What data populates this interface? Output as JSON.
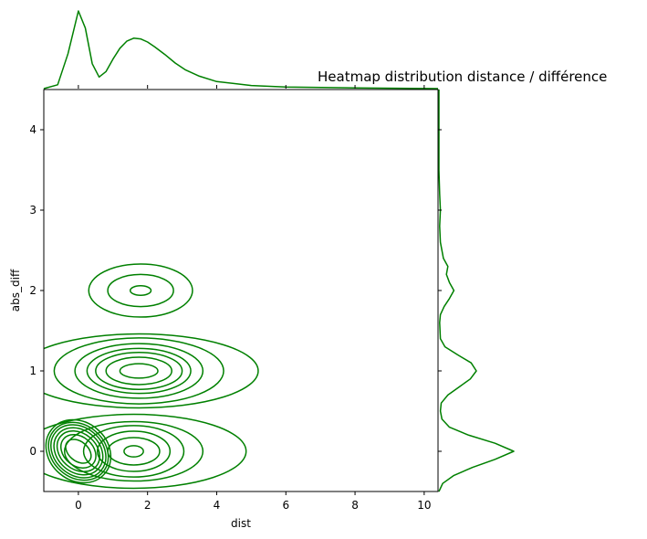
{
  "chart_data": {
    "type": "kde-jointplot",
    "title": "Heatmap distribution distance / différence",
    "xlabel": "dist",
    "ylabel": "abs_diff",
    "xlim": [
      -1.0,
      10.4
    ],
    "ylim": [
      -0.5,
      4.5
    ],
    "xticks": [
      0,
      2,
      4,
      6,
      8,
      10
    ],
    "yticks": [
      0,
      1,
      2,
      3,
      4
    ],
    "color": "#008000",
    "grid": false,
    "clusters": [
      {
        "center": {
          "x": 0.0,
          "y": 0.0
        },
        "contours": [
          {
            "rx": 0.28,
            "ry": 0.18,
            "rot": 50
          },
          {
            "rx": 0.42,
            "ry": 0.24,
            "rot": 50
          },
          {
            "rx": 0.52,
            "ry": 0.29,
            "rot": 50
          },
          {
            "rx": 0.61,
            "ry": 0.33,
            "rot": 50
          },
          {
            "rx": 0.69,
            "ry": 0.37,
            "rot": 50
          },
          {
            "rx": 0.76,
            "ry": 0.4,
            "rot": 50
          },
          {
            "rx": 0.84,
            "ry": 0.43,
            "rot": 50
          }
        ]
      },
      {
        "center": {
          "x": 1.6,
          "y": 0.0
        },
        "contours": [
          {
            "rx": 0.28,
            "ry": 0.07,
            "rot": 0
          },
          {
            "rx": 0.75,
            "ry": 0.17,
            "rot": 0
          },
          {
            "rx": 1.05,
            "ry": 0.25,
            "rot": 0
          },
          {
            "rx": 1.45,
            "ry": 0.32,
            "rot": 0
          },
          {
            "rx": 2.0,
            "ry": 0.37,
            "rot": 0
          },
          {
            "rx": 3.25,
            "ry": 0.46,
            "rot": 0
          }
        ]
      },
      {
        "center": {
          "x": 1.75,
          "y": 1.0
        },
        "contours": [
          {
            "rx": 0.55,
            "ry": 0.09,
            "rot": 0
          },
          {
            "rx": 0.95,
            "ry": 0.17,
            "rot": 0
          },
          {
            "rx": 1.25,
            "ry": 0.23,
            "rot": 0
          },
          {
            "rx": 1.5,
            "ry": 0.28,
            "rot": 0
          },
          {
            "rx": 1.85,
            "ry": 0.34,
            "rot": 0
          },
          {
            "rx": 2.45,
            "ry": 0.41,
            "rot": 0
          },
          {
            "rx": 3.45,
            "ry": 0.46,
            "rot": 0
          }
        ]
      },
      {
        "center": {
          "x": 1.8,
          "y": 2.0
        },
        "contours": [
          {
            "rx": 0.3,
            "ry": 0.06,
            "rot": 0
          },
          {
            "rx": 0.95,
            "ry": 0.2,
            "rot": 0
          },
          {
            "rx": 1.5,
            "ry": 0.33,
            "rot": 0
          }
        ]
      }
    ],
    "marginal_x": {
      "x": [
        -1.0,
        -0.6,
        -0.3,
        0.0,
        0.2,
        0.4,
        0.6,
        0.8,
        1.0,
        1.2,
        1.4,
        1.6,
        1.8,
        2.0,
        2.2,
        2.5,
        2.8,
        3.1,
        3.5,
        4.0,
        5.0,
        6.0,
        8.0,
        10.4
      ],
      "density": [
        0.0,
        0.05,
        0.45,
        1.0,
        0.78,
        0.32,
        0.15,
        0.22,
        0.38,
        0.52,
        0.61,
        0.65,
        0.64,
        0.6,
        0.54,
        0.44,
        0.33,
        0.24,
        0.16,
        0.09,
        0.04,
        0.02,
        0.01,
        0.0
      ]
    },
    "marginal_y": {
      "y": [
        -0.5,
        -0.4,
        -0.3,
        -0.2,
        -0.1,
        0.0,
        0.1,
        0.2,
        0.3,
        0.4,
        0.5,
        0.6,
        0.7,
        0.8,
        0.9,
        1.0,
        1.1,
        1.2,
        1.3,
        1.4,
        1.6,
        1.7,
        1.8,
        1.9,
        2.0,
        2.1,
        2.2,
        2.3,
        2.4,
        2.6,
        2.8,
        3.0,
        3.2,
        3.5,
        4.0,
        4.5
      ],
      "density": [
        0.0,
        0.05,
        0.2,
        0.45,
        0.75,
        1.0,
        0.75,
        0.4,
        0.14,
        0.04,
        0.02,
        0.03,
        0.12,
        0.27,
        0.42,
        0.5,
        0.43,
        0.25,
        0.08,
        0.02,
        0.01,
        0.02,
        0.07,
        0.14,
        0.2,
        0.14,
        0.1,
        0.12,
        0.06,
        0.02,
        0.01,
        0.02,
        0.01,
        0.0,
        0.0,
        0.0
      ]
    }
  }
}
